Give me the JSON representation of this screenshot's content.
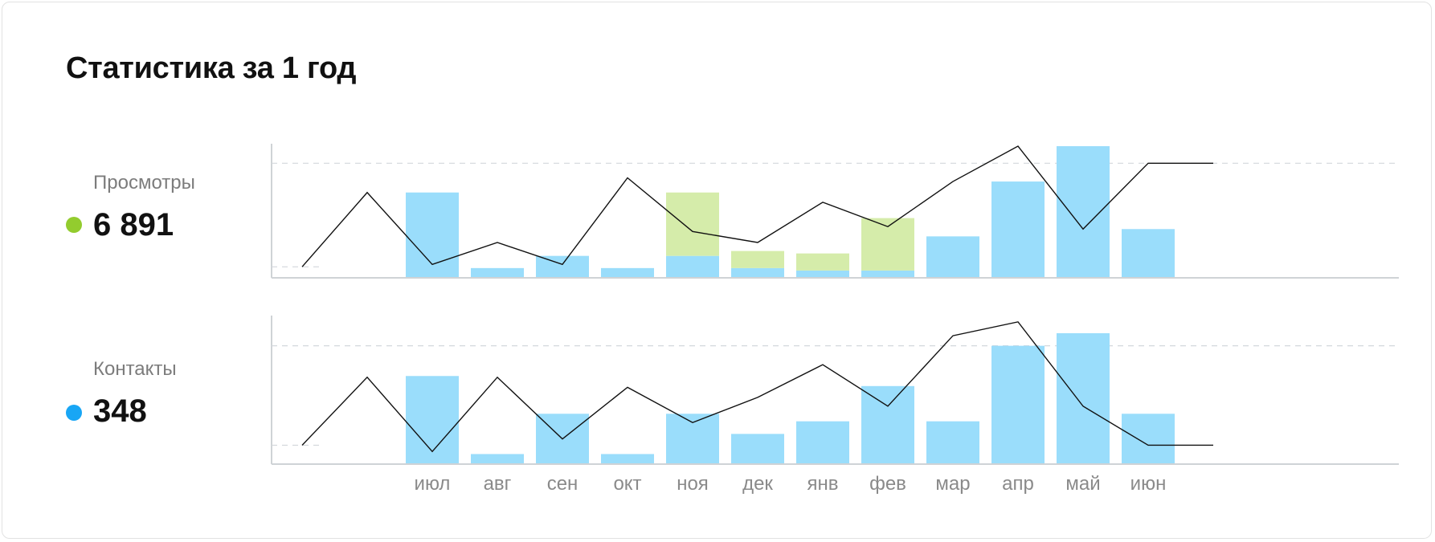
{
  "title": "Статистика за 1 год",
  "metrics": [
    {
      "label": "Просмотры",
      "value": "6 891",
      "color": "#93cc2e"
    },
    {
      "label": "Контакты",
      "value": "348",
      "color": "#18a6f5"
    }
  ],
  "colors": {
    "bar_blue": "#9addfb",
    "bar_green": "#d5ecaa",
    "line": "#111111",
    "grid": "#d3d8dc",
    "axis": "#cfd3d6"
  },
  "chart_data": [
    {
      "type": "bar",
      "name": "Просмотры",
      "categories": [
        "июл",
        "авг",
        "сен",
        "окт",
        "ноя",
        "дек",
        "янв",
        "фев",
        "мар",
        "апр",
        "май",
        "июн"
      ],
      "series": [
        {
          "values": [
            70,
            8,
            18,
            8,
            18,
            8,
            6,
            6,
            34,
            79,
            108,
            40
          ]
        },
        {
          "values": [
            0,
            0,
            0,
            0,
            52,
            14,
            14,
            43,
            0,
            0,
            0,
            0
          ]
        }
      ],
      "line": [
        9,
        70,
        11,
        29,
        11,
        82,
        38,
        29,
        62,
        42,
        79,
        108,
        40,
        94,
        94
      ],
      "ylim": [
        0,
        110
      ],
      "gridlines": [
        9,
        94
      ]
    },
    {
      "type": "bar",
      "name": "Контакты",
      "categories": [
        "июл",
        "авг",
        "сен",
        "окт",
        "ноя",
        "дек",
        "янв",
        "фев",
        "мар",
        "апр",
        "май",
        "июн"
      ],
      "series": [
        {
          "values": [
            70,
            8,
            40,
            8,
            40,
            24,
            34,
            62,
            34,
            94,
            104,
            40
          ]
        }
      ],
      "line": [
        15,
        69,
        10,
        69,
        20,
        61,
        33,
        53,
        79,
        46,
        102,
        113,
        46,
        15,
        15
      ],
      "ylim": [
        0,
        118
      ],
      "gridlines": [
        15,
        94
      ]
    }
  ]
}
